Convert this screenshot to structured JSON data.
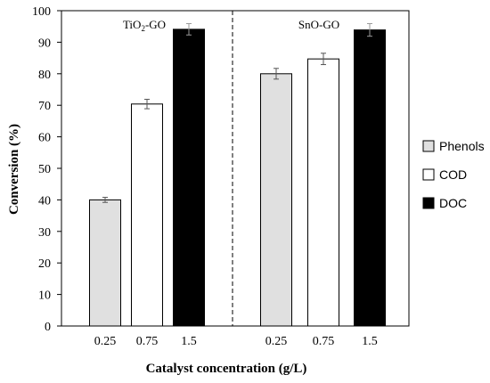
{
  "chart_data": {
    "type": "bar",
    "xlabel": "Catalyst concentration (g/L)",
    "ylabel": "Conversion (%)",
    "ylim": [
      0,
      100
    ],
    "yticks": [
      0,
      10,
      20,
      30,
      40,
      50,
      60,
      70,
      80,
      90,
      100
    ],
    "grid": false,
    "legend_position": "right",
    "groups": [
      {
        "label_prefix": "TiO",
        "label_sub": "2",
        "label_suffix": "-GO",
        "bars": [
          {
            "category": "0.25",
            "series": "Phenols",
            "value": 40,
            "error": 0.8
          },
          {
            "category": "0.75",
            "series": "COD",
            "value": 70.4,
            "error": 1.5
          },
          {
            "category": "1.5",
            "series": "DOC",
            "value": 94.1,
            "error": 1.8
          }
        ]
      },
      {
        "label_prefix": "SnO-GO",
        "label_sub": "",
        "label_suffix": "",
        "bars": [
          {
            "category": "0.25",
            "series": "Phenols",
            "value": 80,
            "error": 1.7
          },
          {
            "category": "0.75",
            "series": "COD",
            "value": 84.7,
            "error": 1.8
          },
          {
            "category": "1.5",
            "series": "DOC",
            "value": 93.9,
            "error": 2.0
          }
        ]
      }
    ],
    "series": [
      {
        "name": "Phenols",
        "color": "#e0e0e0"
      },
      {
        "name": "COD",
        "color": "#ffffff"
      },
      {
        "name": "DOC",
        "color": "#000000"
      }
    ]
  }
}
